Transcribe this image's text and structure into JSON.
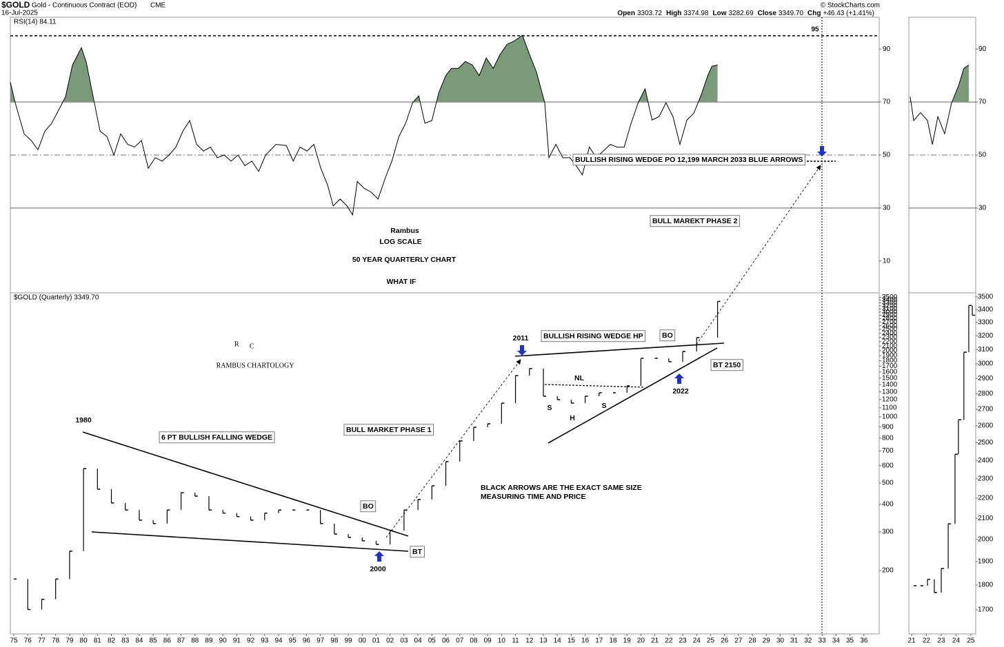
{
  "header": {
    "symbol": "$GOLD",
    "name": "Gold - Continuous Contract (EOD)",
    "exchange": "CME",
    "date": "16-Jul-2025",
    "open_label": "Open",
    "open": "3303.72",
    "high_label": "High",
    "high": "3374.98",
    "low_label": "Low",
    "low": "3282.69",
    "close_label": "Close",
    "close": "3349.70",
    "chg_label": "Chg",
    "chg": "+46.43 (+1.41%)",
    "credit": "© StockCharts.com"
  },
  "chart_data": [
    {
      "type": "line",
      "title": "RSI(14) 84.11",
      "color": "#000000",
      "fill_color": "#7a9a7a",
      "fill_above": 70,
      "ref_line": 95,
      "xlim": [
        1974.75,
        2037.1
      ],
      "ylim": [
        -2,
        102
      ],
      "yticks": [
        10,
        30,
        50,
        70,
        90
      ],
      "x": [
        1974.75,
        1975.1,
        1975.74,
        1976.24,
        1976.73,
        1977.23,
        1977.72,
        1978.22,
        1978.71,
        1979.21,
        1979.85,
        1980.2,
        1980.69,
        1981.19,
        1981.68,
        1982.18,
        1982.67,
        1983.17,
        1983.66,
        1984.16,
        1984.65,
        1985.15,
        1985.64,
        1986.14,
        1986.63,
        1987.13,
        1987.62,
        1988.12,
        1988.61,
        1989.11,
        1989.6,
        1990.1,
        1990.59,
        1991.09,
        1991.58,
        1992.08,
        1992.57,
        1993.07,
        1993.81,
        1994.55,
        1995.05,
        1995.54,
        1996.04,
        1996.53,
        1997.03,
        1997.52,
        1997.92,
        1998.42,
        1998.91,
        1999.31,
        1999.65,
        2000.15,
        2000.64,
        2001.14,
        2001.63,
        2002.13,
        2002.62,
        2003.12,
        2003.61,
        2004.06,
        2004.5,
        2005,
        2005.5,
        2006,
        2006.4,
        2006.9,
        2007.4,
        2007.9,
        2008.4,
        2008.9,
        2009.4,
        2009.9,
        2010.4,
        2010.9,
        2011.5,
        2012,
        2012.5,
        2013.1,
        2013.4,
        2013.9,
        2014.4,
        2014.9,
        2015.3,
        2015.8,
        2016.3,
        2016.8,
        2017.3,
        2017.8,
        2018.3,
        2018.8,
        2019.3,
        2019.8,
        2020.3,
        2020.8,
        2021.3,
        2021.8,
        2022.3,
        2022.8,
        2023.3,
        2023.8,
        2024.3,
        2024.8,
        2025.1,
        2025.5
      ],
      "values": [
        77.5,
        69.7,
        58,
        55.5,
        52,
        59,
        62,
        67,
        72,
        84,
        90.5,
        85,
        72,
        59,
        57,
        50,
        58,
        54,
        53,
        55.5,
        45,
        49,
        47.7,
        50,
        53,
        59,
        63,
        54,
        51.5,
        53,
        49,
        50,
        47.7,
        50,
        46,
        47.7,
        43.8,
        50,
        54,
        53.6,
        47.7,
        53,
        51.5,
        54,
        45,
        38.6,
        30.8,
        33.4,
        30.8,
        27.4,
        40,
        37.4,
        36,
        33.4,
        41,
        47.7,
        56.8,
        62,
        69.7,
        72.3,
        62,
        63,
        73.6,
        80,
        82.7,
        82.7,
        85.3,
        84,
        80,
        86.6,
        82.7,
        88,
        91.8,
        93,
        95.2,
        88,
        81.4,
        69.7,
        49,
        54,
        49,
        49,
        46.4,
        42.5,
        53,
        49,
        51.5,
        54,
        53,
        53,
        62,
        69.7,
        75,
        63.2,
        64.5,
        69.7,
        64.5,
        54,
        63.2,
        65.8,
        72.3,
        80,
        83.5,
        84
      ]
    },
    {
      "type": "ohlc",
      "title": "$GOLD (Quarterly) 3349.70",
      "color": "#000000",
      "log_scale": true,
      "xlim": [
        1974.75,
        2037.1
      ],
      "ylim": [
        103,
        3666
      ],
      "yticks": [
        200,
        300,
        400,
        500,
        600,
        700,
        800,
        900,
        1000,
        1100,
        1200,
        1300,
        1400,
        1500,
        1600,
        1700,
        1800,
        1900,
        2000,
        2100,
        2200,
        2300,
        2400,
        2500,
        2600,
        2700,
        2800,
        2900,
        3000,
        3100,
        3200,
        3300,
        3400,
        3500
      ],
      "xticks": [
        {
          "value": 1975,
          "label": "75"
        },
        {
          "value": 1976,
          "label": "76"
        },
        {
          "value": 1977,
          "label": "77"
        },
        {
          "value": 1978,
          "label": "78"
        },
        {
          "value": 1979,
          "label": "79"
        },
        {
          "value": 1980,
          "label": "80"
        },
        {
          "value": 1981,
          "label": "81"
        },
        {
          "value": 1982,
          "label": "82"
        },
        {
          "value": 1983,
          "label": "83"
        },
        {
          "value": 1984,
          "label": "84"
        },
        {
          "value": 1985,
          "label": "85"
        },
        {
          "value": 1986,
          "label": "86"
        },
        {
          "value": 1987,
          "label": "87"
        },
        {
          "value": 1988,
          "label": "88"
        },
        {
          "value": 1989,
          "label": "89"
        },
        {
          "value": 1990,
          "label": "90"
        },
        {
          "value": 1991,
          "label": "91"
        },
        {
          "value": 1992,
          "label": "92"
        },
        {
          "value": 1993,
          "label": "93"
        },
        {
          "value": 1994,
          "label": "94"
        },
        {
          "value": 1995,
          "label": "95"
        },
        {
          "value": 1996,
          "label": "96"
        },
        {
          "value": 1997,
          "label": "97"
        },
        {
          "value": 1998,
          "label": "98"
        },
        {
          "value": 1999,
          "label": "99"
        },
        {
          "value": 2000,
          "label": "00"
        },
        {
          "value": 2001,
          "label": "01"
        },
        {
          "value": 2002,
          "label": "02"
        },
        {
          "value": 2003,
          "label": "03"
        },
        {
          "value": 2004,
          "label": "04"
        },
        {
          "value": 2005,
          "label": "05"
        },
        {
          "value": 2006,
          "label": "06"
        },
        {
          "value": 2007,
          "label": "07"
        },
        {
          "value": 2008,
          "label": "08"
        },
        {
          "value": 2009,
          "label": "09"
        },
        {
          "value": 2010,
          "label": "10"
        },
        {
          "value": 2011,
          "label": "11"
        },
        {
          "value": 2012,
          "label": "12"
        },
        {
          "value": 2013,
          "label": "13"
        },
        {
          "value": 2014,
          "label": "14"
        },
        {
          "value": 2015,
          "label": "15"
        },
        {
          "value": 2016,
          "label": "16"
        },
        {
          "value": 2017,
          "label": "17"
        },
        {
          "value": 2018,
          "label": "18"
        },
        {
          "value": 2019,
          "label": "19"
        },
        {
          "value": 2020,
          "label": "20"
        },
        {
          "value": 2021,
          "label": "21"
        },
        {
          "value": 2022,
          "label": "22"
        },
        {
          "value": 2023,
          "label": "23"
        },
        {
          "value": 2024,
          "label": "24"
        },
        {
          "value": 2025,
          "label": "25"
        },
        {
          "value": 2026,
          "label": "26"
        },
        {
          "value": 2027,
          "label": "27"
        },
        {
          "value": 2028,
          "label": "28"
        },
        {
          "value": 2029,
          "label": "29"
        },
        {
          "value": 2030,
          "label": "30"
        },
        {
          "value": 2031,
          "label": "31"
        },
        {
          "value": 2032,
          "label": "32"
        },
        {
          "value": 2033,
          "label": "33"
        },
        {
          "value": 2034,
          "label": "34"
        },
        {
          "value": 2035,
          "label": "35"
        },
        {
          "value": 2036,
          "label": "36"
        }
      ],
      "x": [
        1975,
        1976,
        1977,
        1978,
        1979,
        1980,
        1981,
        1982,
        1983,
        1984,
        1985,
        1986,
        1987,
        1988,
        1989,
        1990,
        1991,
        1992,
        1993,
        1994,
        1995,
        1996,
        1997,
        1998,
        1999,
        2000,
        2001,
        2002,
        2003,
        2004,
        2005,
        2006,
        2007,
        2008,
        2009,
        2010,
        2011,
        2012,
        2013,
        2014,
        2015,
        2016,
        2017,
        2018,
        2019,
        2020,
        2021,
        2022,
        2023,
        2024,
        2025.5
      ],
      "values": [
        183,
        133,
        148,
        183,
        245,
        582,
        469,
        406,
        377,
        339,
        327,
        377,
        452,
        436,
        377,
        365,
        352,
        339,
        365,
        377,
        377,
        377,
        327,
        293,
        283,
        273,
        263,
        304,
        377,
        421,
        486,
        626,
        777,
        897,
        930,
        1155,
        1542,
        1658,
        1242,
        1197,
        1155,
        1242,
        1287,
        1287,
        1384,
        1847,
        1847,
        1782,
        1984,
        2293,
        3349.7
      ]
    },
    {
      "type": "line",
      "color": "#000000",
      "fill_color": "#7a9a7a",
      "fill_above": 70,
      "xlim": [
        2020.81,
        2025.33
      ],
      "ylim": [
        -2,
        102
      ],
      "yticks": [
        30,
        50,
        70,
        90
      ],
      "x": [
        2020.9,
        2021.14,
        2021.6,
        2022.07,
        2022.4,
        2022.77,
        2023.23,
        2023.7,
        2024.16,
        2024.53,
        2024.86
      ],
      "values": [
        72,
        63,
        66,
        63,
        54,
        64.5,
        58,
        69.7,
        76,
        82.7,
        84
      ]
    },
    {
      "type": "ohlc",
      "color": "#000000",
      "log_scale": true,
      "xlim": [
        2020.81,
        2025.33
      ],
      "ylim": [
        1608,
        3533
      ],
      "yticks": [
        1700,
        1800,
        1900,
        2000,
        2100,
        2200,
        2300,
        2400,
        2500,
        2600,
        2700,
        2800,
        2900,
        3000,
        3100,
        3200,
        3300,
        3400,
        3500
      ],
      "xticks": [
        {
          "value": 2021,
          "label": "21"
        },
        {
          "value": 2022,
          "label": "22"
        },
        {
          "value": 2023,
          "label": "23"
        },
        {
          "value": 2024,
          "label": "24"
        },
        {
          "value": 2025,
          "label": "25"
        }
      ],
      "x": [
        2021.14,
        2021.6,
        2022.07,
        2022.53,
        2023,
        2023.47,
        2023.93,
        2024.16,
        2024.53,
        2024.86,
        2025.1
      ],
      "values": [
        1797,
        1797,
        1824,
        1769,
        1870,
        2073,
        2434,
        2636,
        3081,
        3431,
        3355
      ]
    }
  ],
  "annotations": [
    "Rambus",
    "LOG SCALE",
    "50 YEAR QUARTERLY CHART",
    "WHAT IF",
    "BULLISH RISING WEDGE PO 12,199  MARCH 2033 BLUE ARROWS",
    "BULL MAREKT PHASE 2",
    "1980",
    "6 PT BULLISH FALLING WEDGE",
    "BULL MARKET PHASE 1",
    "BO",
    "BT",
    "2000",
    "2011",
    "BULLISH RISING WEDGE HP",
    "BO",
    "BT 2150",
    "2022",
    "NL",
    "S",
    "H",
    "S",
    "BLACK ARROWS ARE THE EXACT SAME SIZE",
    "MEASURING TIME AND PRICE"
  ],
  "logo": {
    "letters": [
      "R",
      "C"
    ],
    "text": "RAMBUS CHARTOLOGY"
  }
}
